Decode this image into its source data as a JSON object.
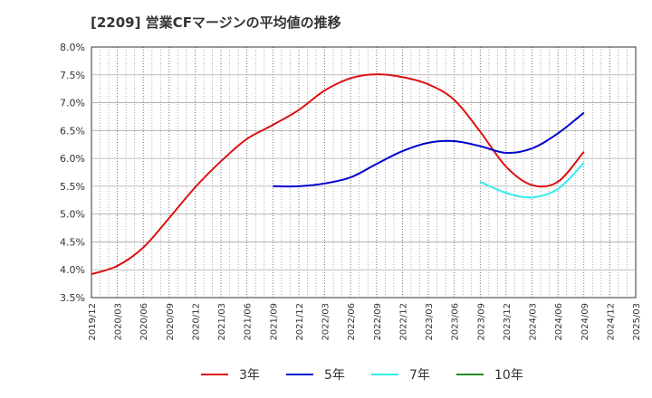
{
  "chart_data": {
    "type": "line",
    "title": "[2209]  営業CFマージンの平均値の推移",
    "xlabel": "",
    "ylabel": "",
    "ylim": [
      3.5,
      8.0
    ],
    "y_ticks": [
      "3.5%",
      "4.0%",
      "4.5%",
      "5.0%",
      "5.5%",
      "6.0%",
      "6.5%",
      "7.0%",
      "7.5%",
      "8.0%"
    ],
    "x_ticks": [
      "2019/12",
      "2020/03",
      "2020/06",
      "2020/09",
      "2020/12",
      "2021/03",
      "2021/06",
      "2021/09",
      "2021/12",
      "2022/03",
      "2022/06",
      "2022/09",
      "2022/12",
      "2023/03",
      "2023/06",
      "2023/09",
      "2023/12",
      "2024/03",
      "2024/06",
      "2024/09",
      "2024/12",
      "2025/03"
    ],
    "grid": true,
    "legend_position": "bottom",
    "series": [
      {
        "name": "3年",
        "color": "#dd1111",
        "points": [
          [
            "2019/12",
            3.92
          ],
          [
            "2020/03",
            4.07
          ],
          [
            "2020/06",
            4.4
          ],
          [
            "2020/09",
            4.93
          ],
          [
            "2020/12",
            5.48
          ],
          [
            "2021/03",
            5.95
          ],
          [
            "2021/06",
            6.35
          ],
          [
            "2021/09",
            6.6
          ],
          [
            "2021/12",
            6.87
          ],
          [
            "2022/03",
            7.22
          ],
          [
            "2022/06",
            7.44
          ],
          [
            "2022/09",
            7.51
          ],
          [
            "2022/12",
            7.46
          ],
          [
            "2023/03",
            7.33
          ],
          [
            "2023/06",
            7.05
          ],
          [
            "2023/09",
            6.48
          ],
          [
            "2023/12",
            5.85
          ],
          [
            "2024/03",
            5.52
          ],
          [
            "2024/06",
            5.58
          ],
          [
            "2024/09",
            6.12
          ]
        ]
      },
      {
        "name": "5年",
        "color": "#0000cc",
        "points": [
          [
            "2021/09",
            5.5
          ],
          [
            "2021/12",
            5.5
          ],
          [
            "2022/03",
            5.55
          ],
          [
            "2022/06",
            5.66
          ],
          [
            "2022/09",
            5.9
          ],
          [
            "2022/12",
            6.13
          ],
          [
            "2023/03",
            6.28
          ],
          [
            "2023/06",
            6.31
          ],
          [
            "2023/09",
            6.22
          ],
          [
            "2023/12",
            6.1
          ],
          [
            "2024/03",
            6.18
          ],
          [
            "2024/06",
            6.45
          ],
          [
            "2024/09",
            6.82
          ]
        ]
      },
      {
        "name": "7年",
        "color": "#33eeee",
        "points": [
          [
            "2023/09",
            5.58
          ],
          [
            "2023/12",
            5.38
          ],
          [
            "2024/03",
            5.3
          ],
          [
            "2024/06",
            5.45
          ],
          [
            "2024/09",
            5.92
          ]
        ]
      },
      {
        "name": "10年",
        "color": "#228822",
        "points": []
      }
    ]
  }
}
